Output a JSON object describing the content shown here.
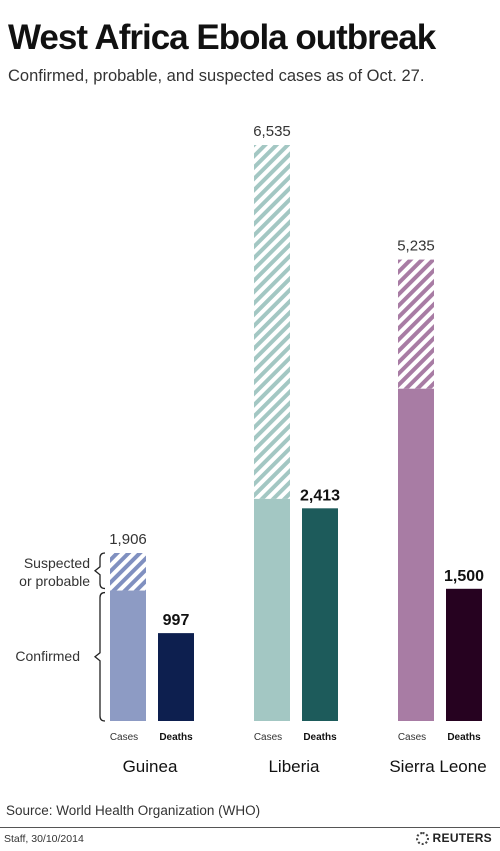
{
  "title": "West Africa Ebola outbreak",
  "subtitle": "Confirmed, probable, and suspected cases as of Oct. 27.",
  "source": "Source: World Health Organization (WHO)",
  "credit": "Staff, 30/10/2014",
  "brand": "REUTERS",
  "chart_data": {
    "type": "bar",
    "title": "West Africa Ebola outbreak",
    "subtitle": "Confirmed, probable, and suspected cases as of Oct. 27.",
    "bar_labels": {
      "cases": "Cases",
      "deaths": "Deaths"
    },
    "annotations": {
      "suspected": "Suspected\nor probable",
      "confirmed": "Confirmed"
    },
    "ylim": [
      0,
      6535
    ],
    "grid": false,
    "legend": "none",
    "categories": [
      {
        "name": "Guinea",
        "cases_total": 1906,
        "cases_total_label": "1,906",
        "confirmed": 1480,
        "deaths": 997,
        "deaths_label": "997",
        "color_confirmed": "#8d9bc4",
        "color_hatch": "#8090c0",
        "color_deaths": "#0d1f4f"
      },
      {
        "name": "Liberia",
        "cases_total": 6535,
        "cases_total_label": "6,535",
        "confirmed": 2520,
        "deaths": 2413,
        "deaths_label": "2,413",
        "color_confirmed": "#a3c7c3",
        "color_hatch": "#a3c7c3",
        "color_deaths": "#1d5b5b"
      },
      {
        "name": "Sierra Leone",
        "cases_total": 5235,
        "cases_total_label": "5,235",
        "confirmed": 3770,
        "deaths": 1500,
        "deaths_label": "1,500",
        "color_confirmed": "#a87ca4",
        "color_hatch": "#a87ca4",
        "color_deaths": "#260220"
      }
    ]
  }
}
